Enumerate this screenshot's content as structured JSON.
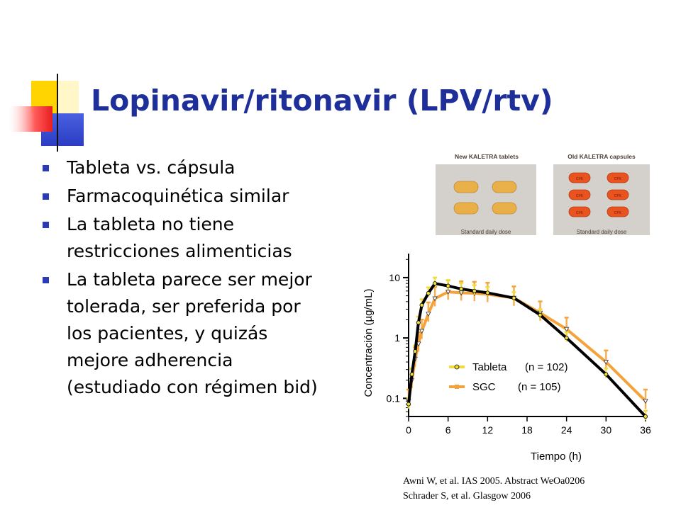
{
  "slide": {
    "title": "Lopinavir/ritonavir (LPV/rtv)",
    "bullets": [
      "Tableta vs. cápsula",
      "Farmacoquinética similar",
      "La tableta no tiene restricciones alimenticias",
      "La tableta parece ser mejor tolerada, ser preferida por los pacientes, y quizás mejore adherencia (estudiado con régimen bid)"
    ],
    "references": [
      "Awni W, et al. IAS 2005. Abstract WeOa0206",
      "Schrader S, et al. Glasgow 2006"
    ]
  },
  "photo": {
    "left_caption": "New KALETRA tablets",
    "right_caption": "Old KALETRA capsules",
    "left_footer": "Standard daily dose",
    "right_footer": "Standard daily dose",
    "capsule_mark": "CPK",
    "tablet_color": "#e9b04a",
    "capsule_color": "#e8531f"
  },
  "chart_data": {
    "type": "line",
    "xlabel": "Tiempo (h)",
    "ylabel": "Concentración (µg/mL)",
    "x_ticks": [
      0,
      6,
      12,
      18,
      24,
      30,
      36
    ],
    "y_ticks": [
      0.1,
      1,
      10
    ],
    "y_tick_labels": [
      "0.1",
      "1",
      "10"
    ],
    "xlim": [
      0,
      36
    ],
    "ylim": [
      0.05,
      25
    ],
    "y_scale": "log",
    "legend_position": "bottom-center",
    "series": [
      {
        "name": "Tableta (n = 102)",
        "legend_name": "Tableta",
        "legend_n": "(n = 102)",
        "line_color": "#000000",
        "marker_color": "#f0dc3c",
        "x": [
          0,
          0.5,
          1,
          1.5,
          2,
          3,
          4,
          6,
          8,
          10,
          12,
          16,
          20,
          24,
          30,
          36
        ],
        "y": [
          0.08,
          0.25,
          0.6,
          1.8,
          3.5,
          5.5,
          8.0,
          7.3,
          6.5,
          6.0,
          5.6,
          4.6,
          2.4,
          1.0,
          0.25,
          0.05
        ]
      },
      {
        "name": "SGC (n = 105)",
        "legend_name": "SGC",
        "legend_n": "(n = 105)",
        "line_color": "#f4a23a",
        "marker_color": "#f4a23a",
        "x": [
          0,
          0.5,
          1,
          1.5,
          2,
          3,
          4,
          6,
          8,
          10,
          12,
          16,
          20,
          24,
          30,
          36
        ],
        "y": [
          0.09,
          0.2,
          0.45,
          0.8,
          1.3,
          2.5,
          4.5,
          5.8,
          5.6,
          5.5,
          5.3,
          4.6,
          2.6,
          1.4,
          0.4,
          0.09
        ]
      }
    ]
  }
}
